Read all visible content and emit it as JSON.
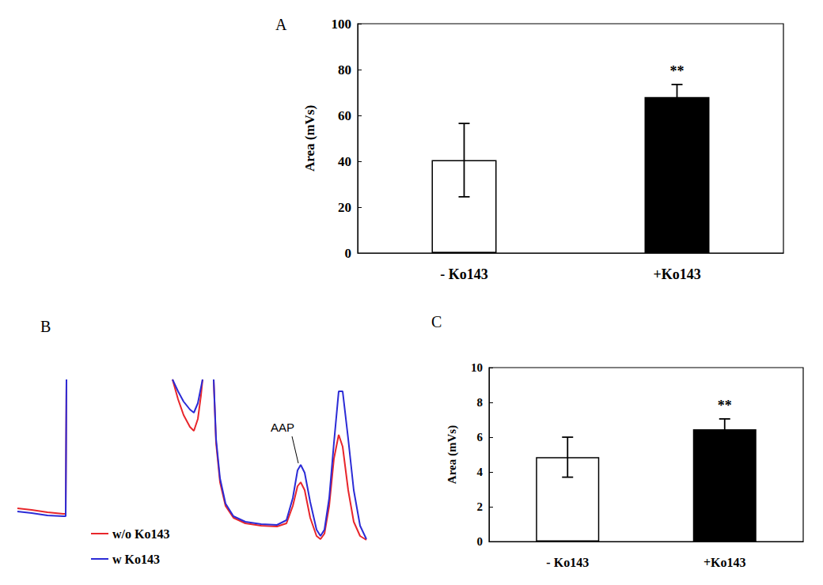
{
  "chart_data": [
    {
      "type": "bar",
      "title": "A",
      "categories": [
        "- Ko143",
        "+Ko143"
      ],
      "values": [
        40.5,
        68
      ],
      "errors": [
        16,
        5.5
      ],
      "colors": [
        "#ffffff",
        "#000000"
      ],
      "ylabel": "Area (mVs)",
      "ylim": [
        0,
        100
      ],
      "yticks": [
        0,
        20,
        40,
        60,
        80,
        100
      ],
      "annotations": [
        {
          "text": "**",
          "category": "+Ko143"
        }
      ],
      "grid": false
    },
    {
      "type": "line",
      "title": "B",
      "x": [
        0,
        18,
        38,
        58,
        61,
        62,
        130,
        196,
        203,
        210,
        218,
        223,
        228,
        232,
        234,
        241,
        248,
        251,
        256,
        263,
        273,
        288,
        308,
        328,
        340,
        348,
        354,
        358,
        363,
        370,
        378,
        383,
        388,
        394,
        400,
        406,
        411,
        418,
        425,
        433,
        441
      ],
      "series": [
        {
          "name": "w/o Ko143",
          "color": "#e8262b",
          "values": [
            47,
            45,
            42,
            40,
            40,
            210,
            null,
            210,
            185,
            165,
            150,
            145,
            160,
            190,
            210,
            null,
            210,
            130,
            80,
            50,
            35,
            28,
            25,
            24,
            28,
            50,
            75,
            80,
            70,
            35,
            12,
            8,
            15,
            50,
            110,
            140,
            125,
            70,
            30,
            12,
            7
          ]
        },
        {
          "name": "w Ko143",
          "color": "#2b2bd6",
          "values": [
            43,
            41,
            38,
            37,
            37,
            210,
            null,
            210,
            195,
            182,
            172,
            168,
            180,
            200,
            210,
            null,
            210,
            135,
            85,
            53,
            37,
            30,
            27,
            26,
            32,
            60,
            95,
            102,
            92,
            55,
            20,
            12,
            20,
            60,
            130,
            195,
            195,
            135,
            70,
            25,
            8
          ]
        }
      ],
      "xlim": [
        0,
        443
      ],
      "ylim": [
        0,
        210
      ],
      "tick_labels": false,
      "legend": "lower left",
      "annotations": [
        {
          "text": "AAP",
          "x": 335,
          "y": 150,
          "point_x": 355,
          "point_y": 104
        }
      ]
    },
    {
      "type": "bar",
      "title": "C",
      "categories": [
        "- Ko143",
        "+Ko143"
      ],
      "values": [
        4.85,
        6.45
      ],
      "errors": [
        1.15,
        0.6
      ],
      "colors": [
        "#ffffff",
        "#000000"
      ],
      "ylabel": "Area (mVs)",
      "ylim": [
        0,
        10
      ],
      "yticks": [
        0,
        2,
        4,
        6,
        8,
        10
      ],
      "annotations": [
        {
          "text": "**",
          "category": "+Ko143"
        }
      ],
      "grid": false
    }
  ]
}
